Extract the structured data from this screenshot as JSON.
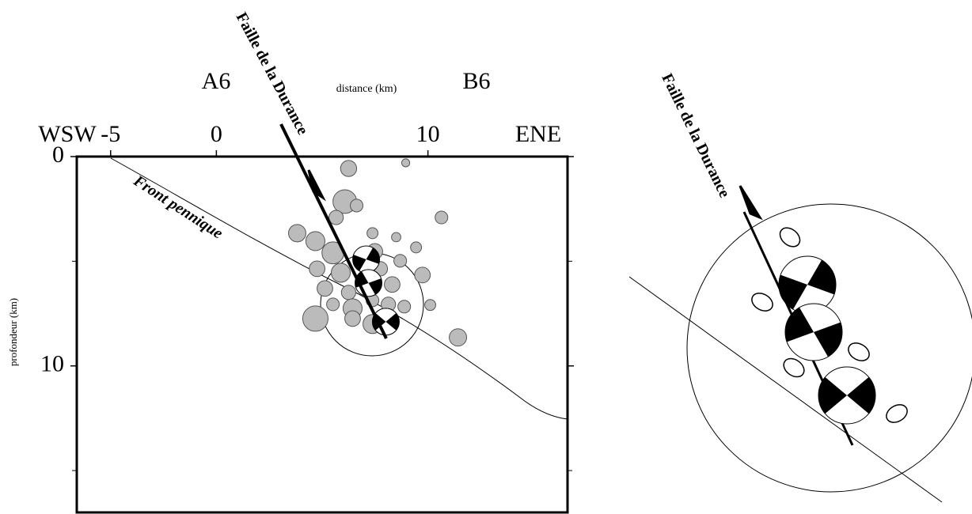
{
  "chart_data": {
    "type": "scatter",
    "x_label": "distance (km)",
    "y_label": "profondeur (km)",
    "left_label": "WSW",
    "right_label": "ENE",
    "section_start": "A6",
    "section_end": "B6",
    "fault_label": "Faille de la Durance",
    "front_label": "Front pennique",
    "xlim": [
      -6.6,
      16.6
    ],
    "ylim": [
      0,
      17
    ],
    "xticks": [
      -5,
      0,
      10
    ],
    "yticks": [
      0,
      10
    ],
    "yticks_minor": [
      5,
      15
    ],
    "series": [
      {
        "color": "#bbbbbb",
        "x": [
          6.25,
          8.95,
          6.07,
          6.63,
          10.64,
          5.66,
          3.82,
          4.68,
          5.51,
          7.38,
          7.49,
          8.5,
          9.44,
          4.76,
          5.88,
          5.13,
          6.25,
          7.75,
          8.31,
          9.74,
          8.69,
          5.51,
          6.44,
          7.38,
          8.13,
          8.88,
          10.11,
          4.68,
          6.44,
          7.38,
          11.42
        ],
        "values": [
          0.57,
          0.3,
          2.15,
          2.34,
          2.91,
          2.91,
          3.66,
          4.04,
          4.6,
          3.66,
          4.53,
          3.85,
          4.34,
          5.36,
          5.55,
          6.3,
          6.49,
          5.36,
          6.11,
          5.66,
          4.98,
          7.06,
          7.25,
          6.87,
          7.06,
          7.17,
          7.09,
          7.74,
          7.74,
          8.0,
          8.64
        ],
        "sizes": [
          0.38,
          0.19,
          0.56,
          0.3,
          0.3,
          0.34,
          0.41,
          0.45,
          0.52,
          0.26,
          0.37,
          0.22,
          0.26,
          0.37,
          0.45,
          0.37,
          0.34,
          0.34,
          0.37,
          0.37,
          0.3,
          0.3,
          0.45,
          0.3,
          0.34,
          0.3,
          0.26,
          0.6,
          0.37,
          0.45,
          0.41
        ]
      }
    ],
    "mechanisms": {
      "x": [
        7.08,
        7.19,
        8.01
      ],
      "values": [
        4.91,
        6.04,
        7.89
      ]
    }
  },
  "inset": {
    "fault_label": "Faille de la Durance"
  }
}
